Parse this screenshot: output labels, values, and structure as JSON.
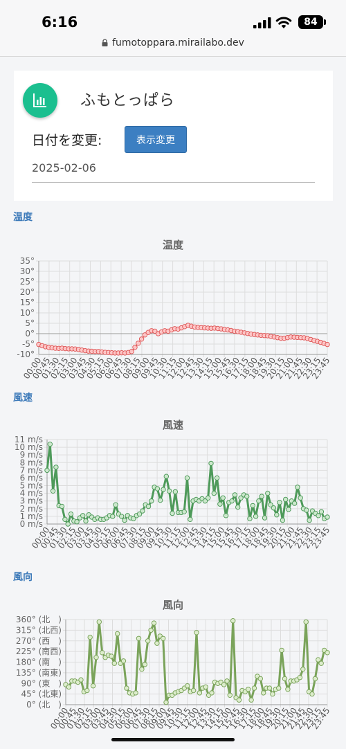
{
  "status": {
    "time": "6:16",
    "battery": "84",
    "url": "fumotoppara.mirailabo.dev"
  },
  "header": {
    "title": "ふもとっぱら",
    "date_label": "日付を変更:",
    "button": "表示変更",
    "date": "2025-02-06"
  },
  "temp": {
    "section": "温度",
    "chart_data": {
      "type": "line",
      "title": "温度",
      "color": "#e05a5a",
      "ylim": [
        -10,
        35
      ],
      "yticks": [
        35,
        30,
        25,
        20,
        15,
        10,
        5,
        0,
        -5,
        -10
      ],
      "ytick_labels": [
        "35°",
        "30°",
        "25°",
        "20°",
        "15°",
        "10°",
        "5°",
        "0°",
        "-5°",
        "-10°"
      ],
      "xtick_labels": [
        "00:00",
        "00:45",
        "01:30",
        "02:15",
        "03:00",
        "03:45",
        "04:30",
        "05:15",
        "06:00",
        "06:45",
        "07:30",
        "08:15",
        "09:00",
        "09:45",
        "10:30",
        "11:15",
        "12:00",
        "12:45",
        "13:30",
        "14:15",
        "15:00",
        "15:45",
        "16:30",
        "17:15",
        "18:00",
        "18:45",
        "19:30",
        "20:15",
        "21:00",
        "21:45",
        "22:30",
        "23:15",
        "23:45"
      ],
      "values": [
        -5.2,
        -5.8,
        -6.3,
        -6.6,
        -6.8,
        -7.0,
        -7.1,
        -7.0,
        -7.2,
        -7.3,
        -7.3,
        -7.4,
        -7.6,
        -7.9,
        -8.2,
        -8.4,
        -8.5,
        -8.6,
        -8.6,
        -8.8,
        -9.0,
        -9.1,
        -9.2,
        -9.3,
        -9.3,
        -9.2,
        -9.3,
        -9.1,
        -8.6,
        -6.6,
        -4.6,
        -2.6,
        -0.6,
        0.6,
        1.4,
        1.2,
        0.0,
        0.8,
        1.4,
        1.2,
        1.8,
        2.4,
        2.2,
        2.8,
        3.4,
        4.0,
        3.6,
        3.2,
        3.0,
        2.9,
        2.8,
        2.7,
        2.6,
        2.7,
        2.5,
        2.3,
        2.0,
        1.8,
        1.5,
        1.2,
        1.0,
        0.7,
        0.4,
        0.1,
        -0.2,
        -0.4,
        -0.6,
        -0.8,
        -0.9,
        -1.0,
        -1.3,
        -1.6,
        -1.9,
        -2.2,
        -2.2,
        -1.9,
        -1.6,
        -1.7,
        -1.8,
        -1.9,
        -2.0,
        -2.3,
        -2.8,
        -3.3,
        -3.7,
        -4.2,
        -4.7,
        -5.2
      ]
    }
  },
  "wind": {
    "section": "風速",
    "chart_data": {
      "type": "line",
      "title": "風速",
      "color": "#4e9a5a",
      "ylim": [
        0,
        11
      ],
      "yticks": [
        11,
        10,
        9,
        8,
        7,
        6,
        5,
        4,
        3,
        2,
        1,
        0
      ],
      "ytick_labels": [
        "11 m/s",
        "10 m/s",
        "9 m/s",
        "8 m/s",
        "7 m/s",
        "6 m/s",
        "5 m/s",
        "4 m/s",
        "3 m/s",
        "2 m/s",
        "1 m/s",
        "0 m/s"
      ],
      "xtick_labels": [
        "00:00",
        "00:45",
        "01:30",
        "02:15",
        "03:00",
        "03:45",
        "04:30",
        "05:15",
        "06:00",
        "06:45",
        "07:30",
        "08:15",
        "09:00",
        "09:45",
        "10:30",
        "11:15",
        "12:00",
        "12:45",
        "13:30",
        "14:15",
        "15:00",
        "15:45",
        "16:30",
        "17:15",
        "18:00",
        "18:45",
        "19:30",
        "20:15",
        "21:00",
        "21:45",
        "22:30",
        "23:15",
        "23:45"
      ],
      "values": [
        7.0,
        10.4,
        4.3,
        7.4,
        2.4,
        2.3,
        0.6,
        0.0,
        1.3,
        0.4,
        0.3,
        0.8,
        1.1,
        0.4,
        1.2,
        0.9,
        0.6,
        0.8,
        0.6,
        0.6,
        0.8,
        1.1,
        1.0,
        2.5,
        1.3,
        1.0,
        0.5,
        1.1,
        0.8,
        0.7,
        1.1,
        1.3,
        1.7,
        2.5,
        2.3,
        3.0,
        4.8,
        4.6,
        3.1,
        4.5,
        6.2,
        4.3,
        1.4,
        4.2,
        1.5,
        1.5,
        1.6,
        6.0,
        0.6,
        3.0,
        3.2,
        3.0,
        3.3,
        3.0,
        3.4,
        7.9,
        4.0,
        6.0,
        2.6,
        3.4,
        1.1,
        2.8,
        3.0,
        3.8,
        2.2,
        3.4,
        3.8,
        3.6,
        0.7,
        2.4,
        1.0,
        3.0,
        3.6,
        0.8,
        4.0,
        2.5,
        2.1,
        1.2,
        2.8,
        0.5,
        3.2,
        1.9,
        3.0,
        2.7,
        4.8,
        3.4,
        2.0,
        1.8,
        0.5,
        1.7,
        1.4,
        1.1,
        1.6,
        0.7,
        0.9
      ]
    }
  },
  "dir": {
    "section": "風向",
    "chart_data": {
      "type": "line",
      "title": "風向",
      "color": "#7aa35a",
      "ylim": [
        0,
        360
      ],
      "yticks": [
        360,
        315,
        270,
        225,
        180,
        135,
        90,
        45,
        0
      ],
      "ytick_labels": [
        "360° (北　)",
        "315° (北西)",
        "270° (西　)",
        "225° (南西)",
        "180° (南　)",
        "135° (南東)",
        "90° (東　)",
        "45° (北東)",
        "0° (北　)"
      ],
      "xtick_labels": [
        "00:00",
        "00:45",
        "01:30",
        "02:15",
        "03:00",
        "03:45",
        "04:30",
        "05:15",
        "06:00",
        "06:45",
        "07:30",
        "08:15",
        "09:00",
        "09:45",
        "10:30",
        "11:15",
        "12:00",
        "12:45",
        "13:30",
        "14:15",
        "15:00",
        "15:45",
        "16:30",
        "17:15",
        "18:00",
        "18:45",
        "19:30",
        "20:15",
        "21:00",
        "21:45",
        "22:30",
        "23:15",
        "23:45"
      ],
      "values": [
        85,
        75,
        100,
        100,
        95,
        105,
        55,
        60,
        285,
        80,
        200,
        350,
        220,
        200,
        210,
        205,
        175,
        300,
        175,
        185,
        70,
        50,
        45,
        50,
        280,
        150,
        170,
        270,
        315,
        345,
        260,
        290,
        280,
        10,
        40,
        40,
        50,
        55,
        60,
        70,
        80,
        55,
        60,
        305,
        50,
        70,
        75,
        40,
        50,
        95,
        90,
        95,
        85,
        100,
        40,
        355,
        30,
        20,
        60,
        55,
        65,
        20,
        70,
        120,
        110,
        50,
        70,
        70,
        45,
        65,
        70,
        230,
        110,
        65,
        100,
        100,
        105,
        115,
        150,
        350,
        55,
        45,
        110,
        190,
        175,
        230,
        220
      ]
    }
  }
}
